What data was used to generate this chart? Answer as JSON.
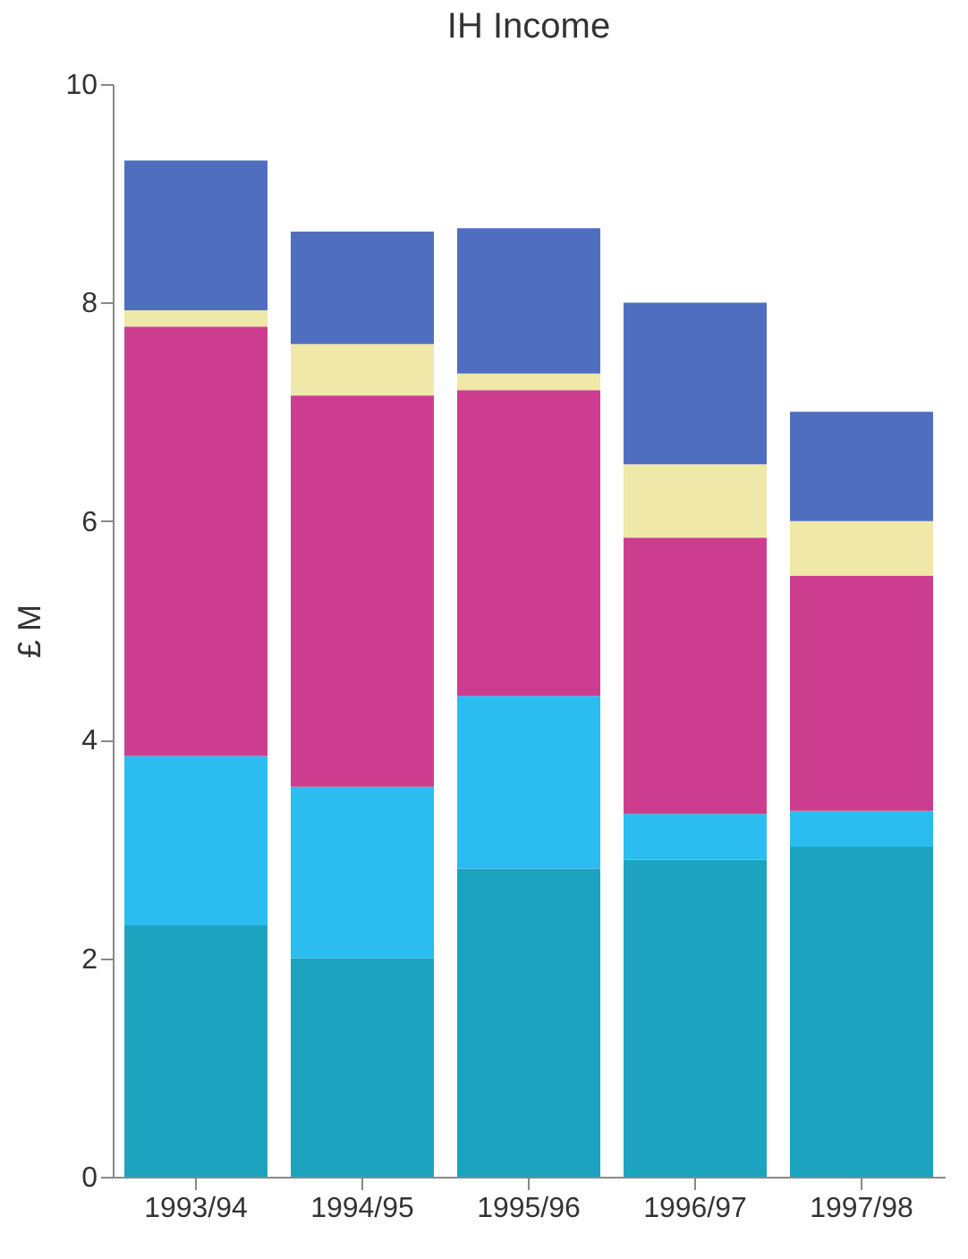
{
  "chart_data": {
    "type": "bar",
    "title": "IH Income",
    "ylabel": "£ M",
    "categories": [
      "1993/94",
      "1994/95",
      "1995/96",
      "1996/97",
      "1997/98"
    ],
    "stacked": true,
    "ylim": [
      0,
      10
    ],
    "yticks": [
      0,
      2,
      4,
      6,
      8,
      10
    ],
    "grid": false,
    "legend": false,
    "series": [
      {
        "color": "#1ba3bf",
        "values": [
          2.3,
          2.0,
          2.82,
          2.9,
          3.02
        ]
      },
      {
        "color": "#2bbcf0",
        "values": [
          1.55,
          1.57,
          1.58,
          0.42,
          0.33
        ]
      },
      {
        "color": "#cc3d8f",
        "values": [
          3.93,
          3.58,
          2.8,
          2.53,
          2.15
        ]
      },
      {
        "color": "#efe8a8",
        "values": [
          0.15,
          0.47,
          0.15,
          0.67,
          0.5
        ]
      },
      {
        "color": "#4f6ec0",
        "values": [
          1.37,
          1.03,
          1.33,
          1.48,
          1.0
        ]
      }
    ]
  }
}
